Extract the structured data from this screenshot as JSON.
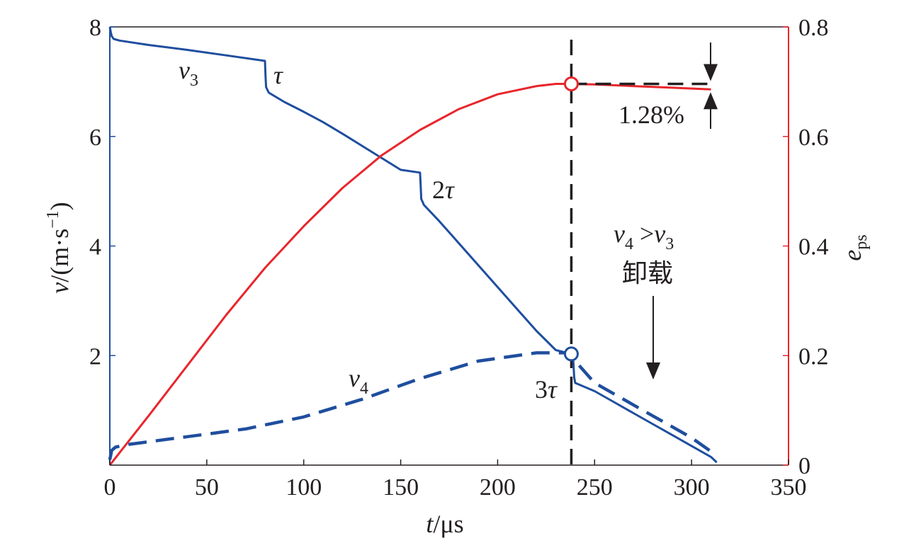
{
  "chart_data": {
    "type": "line",
    "xlabel": {
      "var": "t",
      "unit": "/μs"
    },
    "ylabel_left": {
      "var": "v",
      "unit_prefix": "/(m·s",
      "unit_sup": "−1",
      "unit_suffix": ")"
    },
    "ylabel_right": {
      "var": "e",
      "sub": "ps"
    },
    "xlim": [
      0,
      350
    ],
    "ylim_left": [
      0,
      8
    ],
    "ylim_right": [
      0,
      0.8
    ],
    "x_ticks": [
      0,
      50,
      100,
      150,
      200,
      250,
      300,
      350
    ],
    "x_tick_labels": [
      "0",
      "50",
      "100",
      "150",
      "200",
      "250",
      "300",
      "350"
    ],
    "y_left_ticks": [
      2,
      4,
      6,
      8
    ],
    "y_left_tick_labels": [
      "2",
      "4",
      "6",
      "8"
    ],
    "y_right_ticks": [
      0,
      0.2,
      0.4,
      0.6,
      0.8
    ],
    "y_right_tick_labels": [
      "0",
      "0.2",
      "0.4",
      "0.6",
      "0.8"
    ],
    "colors": {
      "blue": "#1f4e9e",
      "red": "#e8262c",
      "black": "#231f20"
    },
    "series": [
      {
        "axis": "left",
        "style": "solid",
        "color": "#1f4e9e",
        "x": [
          0,
          0.5,
          1,
          2,
          5,
          20,
          40,
          60,
          80,
          80.3,
          80.6,
          82,
          90,
          100,
          110,
          120,
          130,
          140,
          150,
          160,
          160.3,
          160.6,
          162,
          170,
          180,
          190,
          200,
          210,
          220,
          230,
          238,
          239,
          239.5,
          240,
          250,
          260,
          270,
          280,
          290,
          300,
          310,
          313
        ],
        "y": [
          8.0,
          7.9,
          7.83,
          7.78,
          7.75,
          7.67,
          7.58,
          7.48,
          7.38,
          7.1,
          6.9,
          6.8,
          6.63,
          6.45,
          6.26,
          6.05,
          5.83,
          5.61,
          5.39,
          5.34,
          5.1,
          4.86,
          4.75,
          4.45,
          4.05,
          3.65,
          3.25,
          2.85,
          2.45,
          2.1,
          2.03,
          1.9,
          1.6,
          1.5,
          1.35,
          1.15,
          0.95,
          0.75,
          0.55,
          0.35,
          0.15,
          0.05
        ]
      },
      {
        "axis": "left",
        "style": "dashed",
        "color": "#1f4e9e",
        "x": [
          0,
          1,
          3,
          10,
          40,
          70,
          100,
          130,
          160,
          190,
          220,
          238,
          240,
          250,
          260,
          270,
          280,
          290,
          300,
          310
        ],
        "y": [
          0.1,
          0.27,
          0.33,
          0.38,
          0.52,
          0.66,
          0.88,
          1.2,
          1.58,
          1.9,
          2.05,
          2.05,
          1.9,
          1.5,
          1.3,
          1.1,
          0.9,
          0.7,
          0.5,
          0.25
        ]
      },
      {
        "axis": "right",
        "style": "solid",
        "color": "#e8262c",
        "x": [
          0,
          20,
          40,
          60,
          80,
          100,
          120,
          140,
          160,
          180,
          200,
          220,
          230,
          238,
          250,
          270,
          290,
          310
        ],
        "y": [
          0,
          0.09,
          0.182,
          0.274,
          0.36,
          0.436,
          0.506,
          0.565,
          0.612,
          0.65,
          0.677,
          0.692,
          0.696,
          0.696,
          0.695,
          0.692,
          0.689,
          0.686
        ]
      }
    ],
    "reference_lines": [
      {
        "orientation": "vertical",
        "x": 238,
        "style": "dashed",
        "color": "#231f20"
      },
      {
        "orientation": "horizontal",
        "axis": "right",
        "y": 0.696,
        "x_from": 238,
        "x_to": 310,
        "style": "dashed",
        "color": "#231f20"
      }
    ],
    "markers": [
      {
        "axis": "left",
        "x": 238,
        "y": 2.03,
        "shape": "open-circle",
        "color": "#1f4e9e"
      },
      {
        "axis": "right",
        "x": 238,
        "y": 0.696,
        "shape": "open-circle",
        "color": "#e8262c"
      }
    ],
    "annotations": {
      "v3": {
        "var": "v",
        "sub": "3"
      },
      "v4": {
        "var": "v",
        "sub": "4"
      },
      "tau1": {
        "text": "τ"
      },
      "tau2": {
        "prefix": "2",
        "text": "τ"
      },
      "tau3": {
        "prefix": "3",
        "text": "τ"
      },
      "cond": {
        "var1": "v",
        "sub1": "4",
        "op": " >",
        "var2": "v",
        "sub2": "3"
      },
      "unload": "卸载",
      "percent": "1.28%"
    }
  }
}
